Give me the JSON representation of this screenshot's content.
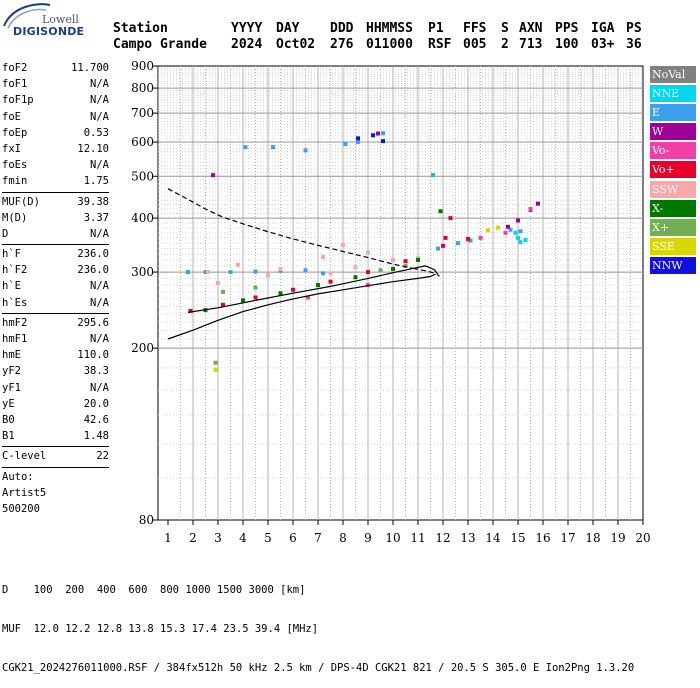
{
  "logo": {
    "line1": "Lowell",
    "line2": "DIGISONDE"
  },
  "header": {
    "labels": [
      "Station",
      "YYYY",
      "DAY",
      "DDD",
      "HHMMSS",
      "P1",
      "FFS",
      "S",
      "AXN",
      "PPS",
      "IGA",
      "PS"
    ],
    "values": [
      "Campo Grande",
      "2024",
      "Oct02",
      "276",
      "011000",
      "RSF",
      "005",
      "2",
      "713",
      "100",
      "03+",
      "36"
    ]
  },
  "params": {
    "group1": [
      {
        "k": "foF2",
        "v": "11.700"
      },
      {
        "k": "foF1",
        "v": "N/A"
      },
      {
        "k": "foF1p",
        "v": "N/A"
      },
      {
        "k": "foE",
        "v": "N/A"
      },
      {
        "k": "foEp",
        "v": "0.53"
      },
      {
        "k": "fxI",
        "v": "12.10"
      },
      {
        "k": "foEs",
        "v": "N/A"
      },
      {
        "k": "fmin",
        "v": "1.75"
      }
    ],
    "group2": [
      {
        "k": "MUF(D)",
        "v": "39.38"
      },
      {
        "k": "M(D)",
        "v": "3.37"
      },
      {
        "k": "D",
        "v": "N/A"
      }
    ],
    "group3": [
      {
        "k": "h`F",
        "v": "236.0"
      },
      {
        "k": "h`F2",
        "v": "236.0"
      },
      {
        "k": "h`E",
        "v": "N/A"
      },
      {
        "k": "h`Es",
        "v": "N/A"
      }
    ],
    "group4": [
      {
        "k": "hmF2",
        "v": "295.6"
      },
      {
        "k": "hmF1",
        "v": "N/A"
      },
      {
        "k": "hmE",
        "v": "110.0"
      },
      {
        "k": "yF2",
        "v": "38.3"
      },
      {
        "k": "yF1",
        "v": "N/A"
      },
      {
        "k": "yE",
        "v": "20.0"
      },
      {
        "k": "B0",
        "v": "42.6"
      },
      {
        "k": "B1",
        "v": "1.48"
      }
    ],
    "group5": [
      {
        "k": "C-level",
        "v": "22"
      }
    ],
    "auto": [
      "Auto:",
      "Artist5",
      "500200"
    ]
  },
  "legend": [
    {
      "label": "NoVal",
      "color": "#808080"
    },
    {
      "label": "NNE",
      "color": "#00d8f0"
    },
    {
      "label": "E",
      "color": "#3c9ff0"
    },
    {
      "label": "W",
      "color": "#a0009a"
    },
    {
      "label": "Vo-",
      "color": "#f040a8"
    },
    {
      "label": "Vo+",
      "color": "#e8002a"
    },
    {
      "label": "SSW",
      "color": "#f8a8a8"
    },
    {
      "label": "X-",
      "color": "#007800"
    },
    {
      "label": "X+",
      "color": "#70b050"
    },
    {
      "label": "SSE",
      "color": "#d8d800"
    },
    {
      "label": "NNW",
      "color": "#1010e0"
    }
  ],
  "footer": {
    "line1": "D    100  200  400  600  800 1000 1500 3000 [km]",
    "line2": "MUF  12.0 12.2 12.8 13.8 15.3 17.4 23.5 39.4 [MHz]",
    "line3": "CGK21_2024276011000.RSF / 384fx512h 50 kHz 2.5 km / DPS-4D CGK21 821 / 20.5 S 305.0 E Ion2Png 1.3.20"
  },
  "chart_data": {
    "type": "scatter",
    "x_ticks": [
      1,
      2,
      3,
      4,
      5,
      6,
      7,
      8,
      9,
      10,
      11,
      12,
      13,
      14,
      15,
      16,
      17,
      18,
      19,
      20
    ],
    "y_ticks": [
      80,
      200,
      300,
      400,
      500,
      600,
      700,
      800,
      900
    ],
    "xlim": [
      1,
      20
    ],
    "ylim": [
      80,
      900
    ],
    "y_scale": "log",
    "grid": true,
    "legend_position": "right",
    "series": [
      {
        "name": "E",
        "points": [
          [
            1.8,
            300
          ],
          [
            2.5,
            300
          ],
          [
            3.5,
            300
          ],
          [
            4.5,
            301
          ],
          [
            5.5,
            302
          ],
          [
            6.5,
            303
          ],
          [
            7.2,
            298
          ],
          [
            8.1,
            594
          ],
          [
            8.6,
            600
          ],
          [
            9.6,
            629
          ],
          [
            4.1,
            584
          ],
          [
            5.2,
            584
          ],
          [
            6.5,
            574
          ],
          [
            11.6,
            503
          ],
          [
            11.8,
            340
          ],
          [
            12.6,
            350
          ],
          [
            13.1,
            355
          ],
          [
            14.7,
            376
          ],
          [
            15.1,
            373
          ]
        ]
      },
      {
        "name": "NNE",
        "points": [
          [
            15.0,
            360
          ],
          [
            15.1,
            352
          ],
          [
            15.3,
            356
          ],
          [
            14.9,
            370
          ]
        ]
      },
      {
        "name": "W",
        "points": [
          [
            14.6,
            382
          ],
          [
            15.0,
            395
          ],
          [
            15.5,
            418
          ],
          [
            15.8,
            432
          ],
          [
            2.8,
            503
          ],
          [
            9.4,
            628
          ]
        ]
      },
      {
        "name": "Vo-",
        "points": [
          [
            6.6,
            262
          ],
          [
            9.0,
            280
          ],
          [
            13.5,
            360
          ],
          [
            14.5,
            370
          ],
          [
            15.5,
            420
          ]
        ]
      },
      {
        "name": "Vo+",
        "points": [
          [
            1.9,
            244
          ],
          [
            3.2,
            252
          ],
          [
            4.5,
            262
          ],
          [
            6.0,
            273
          ],
          [
            7.5,
            285
          ],
          [
            9.0,
            300
          ],
          [
            10.5,
            318
          ],
          [
            11.0,
            322
          ],
          [
            12.0,
            345
          ],
          [
            13.0,
            358
          ],
          [
            12.3,
            400
          ],
          [
            12.1,
            360
          ]
        ]
      },
      {
        "name": "SSW",
        "points": [
          [
            2.6,
            300
          ],
          [
            3.8,
            312
          ],
          [
            5.5,
            305
          ],
          [
            7.2,
            325
          ],
          [
            8.0,
            347
          ],
          [
            9.0,
            333
          ],
          [
            10.0,
            320
          ],
          [
            11.0,
            323
          ],
          [
            3.0,
            283
          ],
          [
            5.0,
            295
          ],
          [
            7.5,
            298
          ],
          [
            8.5,
            308
          ]
        ]
      },
      {
        "name": "X-",
        "points": [
          [
            2.5,
            245
          ],
          [
            4.0,
            258
          ],
          [
            5.5,
            268
          ],
          [
            7.0,
            280
          ],
          [
            8.5,
            292
          ],
          [
            10.0,
            305
          ],
          [
            11.0,
            320
          ],
          [
            11.9,
            415
          ]
        ]
      },
      {
        "name": "X+",
        "points": [
          [
            3.2,
            270
          ],
          [
            4.5,
            276
          ],
          [
            9.5,
            303
          ],
          [
            10.5,
            310
          ],
          [
            2.9,
            185
          ]
        ]
      },
      {
        "name": "SSE",
        "points": [
          [
            14.2,
            380
          ],
          [
            13.8,
            375
          ],
          [
            2.9,
            178
          ]
        ]
      },
      {
        "name": "NNW",
        "points": [
          [
            9.2,
            622
          ],
          [
            8.6,
            612
          ],
          [
            9.6,
            603
          ]
        ]
      }
    ],
    "profile_lines": [
      {
        "style": "solid",
        "points": [
          [
            1,
            210
          ],
          [
            2,
            220
          ],
          [
            3,
            232
          ],
          [
            4,
            243
          ],
          [
            5,
            252
          ],
          [
            6,
            260
          ],
          [
            7,
            267
          ],
          [
            8,
            273
          ],
          [
            9,
            279
          ],
          [
            10,
            285
          ],
          [
            11,
            290
          ],
          [
            11.5,
            293
          ],
          [
            11.7,
            297
          ]
        ]
      },
      {
        "style": "solid",
        "points": [
          [
            1.8,
            242
          ],
          [
            3,
            248
          ],
          [
            4.5,
            258
          ],
          [
            6,
            268
          ],
          [
            7.5,
            278
          ],
          [
            9,
            290
          ],
          [
            10,
            299
          ],
          [
            10.8,
            306
          ],
          [
            11.3,
            310
          ],
          [
            11.65,
            304
          ],
          [
            11.85,
            293
          ]
        ]
      },
      {
        "style": "dashed",
        "points": [
          [
            1,
            468
          ],
          [
            1.8,
            442
          ],
          [
            2.5,
            420
          ],
          [
            3.2,
            402
          ],
          [
            4,
            388
          ],
          [
            5,
            372
          ],
          [
            6,
            358
          ],
          [
            7,
            346
          ],
          [
            8,
            335
          ],
          [
            9,
            324
          ],
          [
            10,
            313
          ],
          [
            10.8,
            306
          ]
        ]
      },
      {
        "style": "dashed",
        "points": [
          [
            10.8,
            306
          ],
          [
            11.3,
            302
          ],
          [
            11.6,
            299
          ],
          [
            11.7,
            297
          ]
        ]
      }
    ]
  }
}
